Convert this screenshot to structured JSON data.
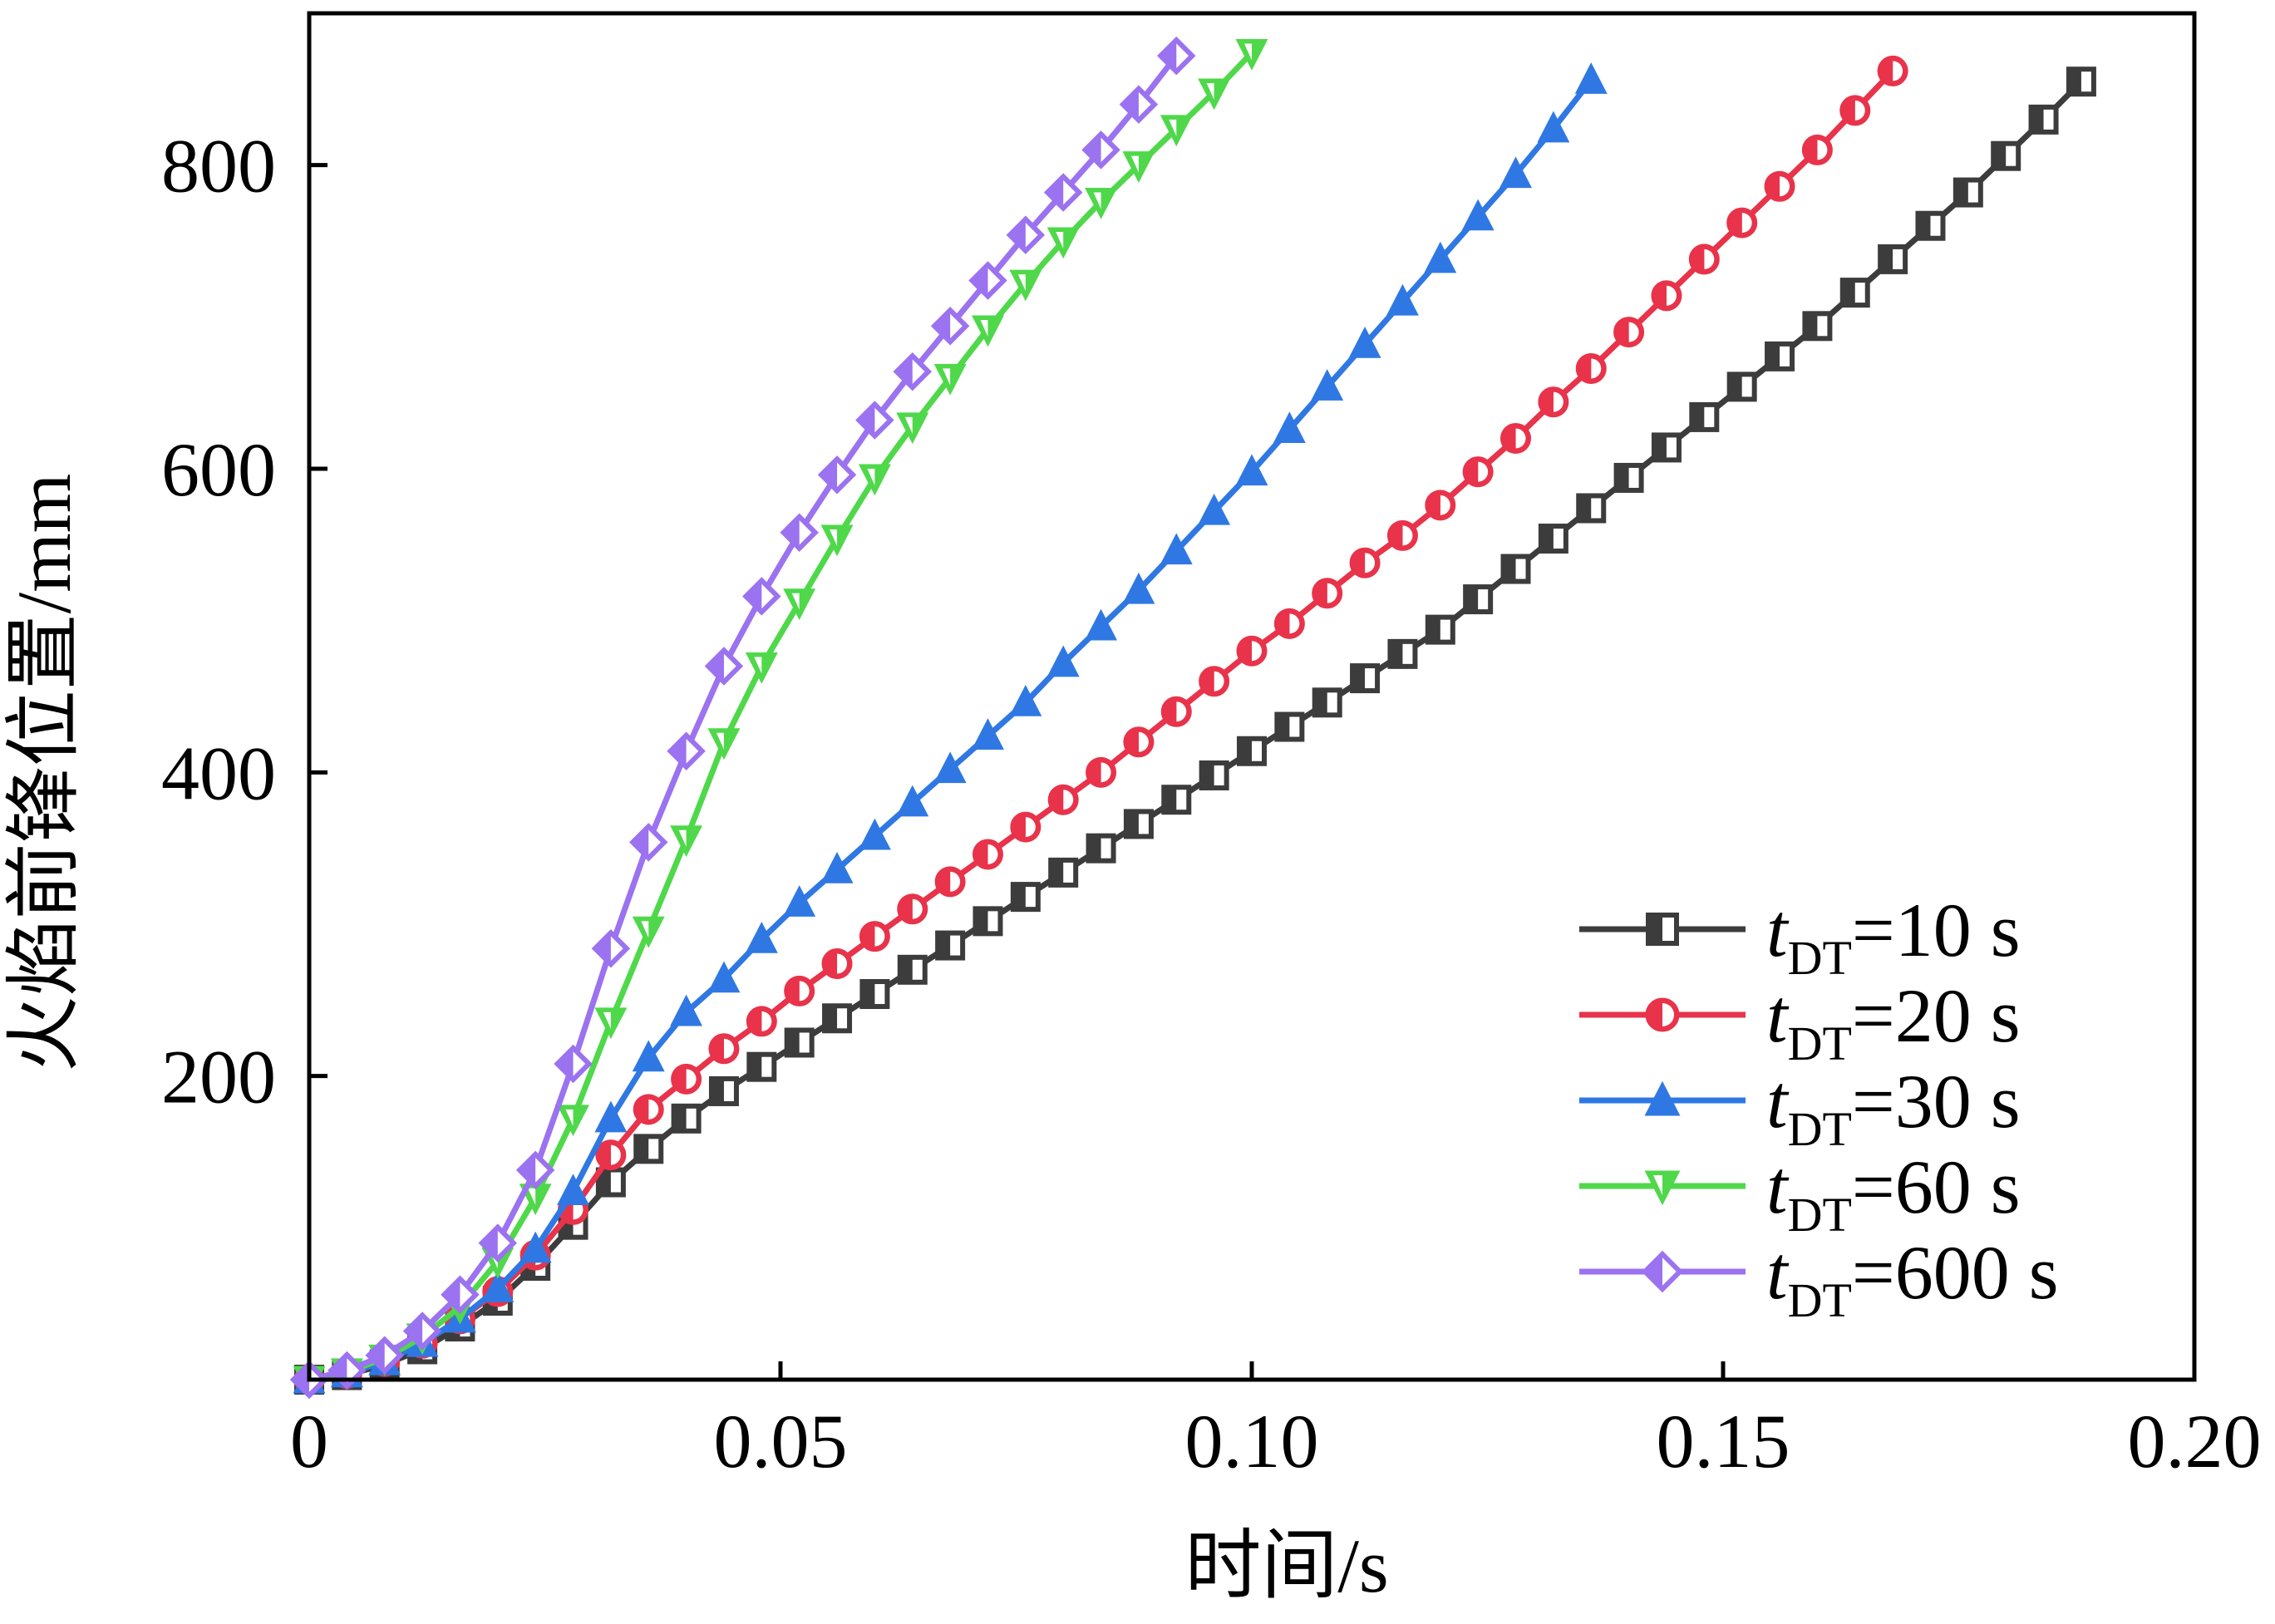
{
  "chart_data": {
    "type": "line",
    "title": "",
    "xlabel": "时间/s",
    "ylabel": "火焰前锋位置/mm",
    "xlim": [
      0,
      0.2
    ],
    "ylim": [
      0,
      900
    ],
    "x_ticks": [
      0,
      0.05,
      0.1,
      0.15,
      0.2
    ],
    "x_tick_labels": [
      "0",
      "0.05",
      "0.10",
      "0.15",
      "0.20"
    ],
    "y_ticks": [
      200,
      400,
      600,
      800
    ],
    "y_tick_labels": [
      "200",
      "400",
      "600",
      "800"
    ],
    "grid": false,
    "legend_position": "bottom-right",
    "series": [
      {
        "name": "tDT=10 s",
        "legend": {
          "italic": "t",
          "sub": "DT",
          "rest": "=10 s"
        },
        "color": "#3c3c3c",
        "marker": "square",
        "x": [
          0,
          0.004,
          0.008,
          0.012,
          0.016,
          0.02,
          0.024,
          0.028,
          0.032,
          0.036,
          0.04,
          0.044,
          0.048,
          0.052,
          0.056,
          0.06,
          0.064,
          0.068,
          0.072,
          0.076,
          0.08,
          0.084,
          0.088,
          0.092,
          0.096,
          0.1,
          0.104,
          0.108,
          0.112,
          0.116,
          0.12,
          0.124,
          0.128,
          0.132,
          0.136,
          0.14,
          0.144,
          0.148,
          0.152,
          0.156,
          0.16,
          0.164,
          0.168,
          0.172,
          0.176,
          0.18,
          0.184,
          0.188
        ],
        "y": [
          0,
          3,
          10,
          20,
          35,
          52,
          75,
          102,
          130,
          152,
          172,
          190,
          206,
          222,
          238,
          254,
          270,
          286,
          302,
          318,
          334,
          350,
          366,
          382,
          398,
          414,
          430,
          446,
          462,
          478,
          494,
          514,
          534,
          554,
          574,
          594,
          614,
          634,
          654,
          674,
          694,
          716,
          738,
          760,
          782,
          806,
          830,
          855
        ]
      },
      {
        "name": "tDT=20 s",
        "legend": {
          "italic": "t",
          "sub": "DT",
          "rest": "=20 s"
        },
        "color": "#e8334a",
        "marker": "circle",
        "x": [
          0,
          0.004,
          0.008,
          0.012,
          0.016,
          0.02,
          0.024,
          0.028,
          0.032,
          0.036,
          0.04,
          0.044,
          0.048,
          0.052,
          0.056,
          0.06,
          0.064,
          0.068,
          0.072,
          0.076,
          0.08,
          0.084,
          0.088,
          0.092,
          0.096,
          0.1,
          0.104,
          0.108,
          0.112,
          0.116,
          0.12,
          0.124,
          0.128,
          0.132,
          0.136,
          0.14,
          0.144,
          0.148,
          0.152,
          0.156,
          0.16,
          0.164,
          0.168
        ],
        "y": [
          0,
          4,
          12,
          24,
          40,
          58,
          82,
          112,
          148,
          178,
          198,
          218,
          236,
          256,
          274,
          292,
          310,
          328,
          346,
          364,
          382,
          400,
          420,
          440,
          460,
          480,
          498,
          518,
          538,
          556,
          576,
          598,
          620,
          644,
          666,
          690,
          714,
          738,
          762,
          786,
          810,
          836,
          862
        ]
      },
      {
        "name": "tDT=30 s",
        "legend": {
          "italic": "t",
          "sub": "DT",
          "rest": "=30 s"
        },
        "color": "#2f78e4",
        "marker": "triangle-up",
        "x": [
          0,
          0.004,
          0.008,
          0.012,
          0.016,
          0.02,
          0.024,
          0.028,
          0.032,
          0.036,
          0.04,
          0.044,
          0.048,
          0.052,
          0.056,
          0.06,
          0.064,
          0.068,
          0.072,
          0.076,
          0.08,
          0.084,
          0.088,
          0.092,
          0.096,
          0.1,
          0.104,
          0.108,
          0.112,
          0.116,
          0.12,
          0.124,
          0.128,
          0.132,
          0.136
        ],
        "y": [
          0,
          4,
          12,
          24,
          40,
          60,
          86,
          124,
          172,
          212,
          242,
          264,
          290,
          314,
          336,
          358,
          380,
          402,
          424,
          446,
          472,
          496,
          520,
          546,
          572,
          598,
          626,
          654,
          682,
          710,
          738,
          766,
          794,
          824,
          856
        ]
      },
      {
        "name": "tDT=60 s",
        "legend": {
          "italic": "t",
          "sub": "DT",
          "rest": "=60 s"
        },
        "color": "#4fd84a",
        "marker": "triangle-down",
        "x": [
          0,
          0.004,
          0.008,
          0.012,
          0.016,
          0.02,
          0.024,
          0.028,
          0.032,
          0.036,
          0.04,
          0.044,
          0.048,
          0.052,
          0.056,
          0.06,
          0.064,
          0.068,
          0.072,
          0.076,
          0.08,
          0.084,
          0.088,
          0.092,
          0.096,
          0.1
        ],
        "y": [
          0,
          5,
          14,
          28,
          48,
          78,
          120,
          172,
          236,
          296,
          356,
          420,
          470,
          512,
          554,
          594,
          628,
          660,
          692,
          722,
          750,
          776,
          800,
          824,
          848,
          874
        ]
      },
      {
        "name": "tDT=600 s",
        "legend": {
          "italic": "t",
          "sub": "DT",
          "rest": "=600 s"
        },
        "color": "#9b72f0",
        "marker": "diamond",
        "x": [
          0,
          0.004,
          0.008,
          0.012,
          0.016,
          0.02,
          0.024,
          0.028,
          0.032,
          0.036,
          0.04,
          0.044,
          0.048,
          0.052,
          0.056,
          0.06,
          0.064,
          0.068,
          0.072,
          0.076,
          0.08,
          0.084,
          0.088,
          0.092
        ],
        "y": [
          0,
          6,
          16,
          32,
          56,
          90,
          138,
          208,
          284,
          354,
          414,
          470,
          516,
          558,
          596,
          632,
          664,
          694,
          724,
          754,
          782,
          810,
          840,
          872
        ]
      }
    ]
  }
}
